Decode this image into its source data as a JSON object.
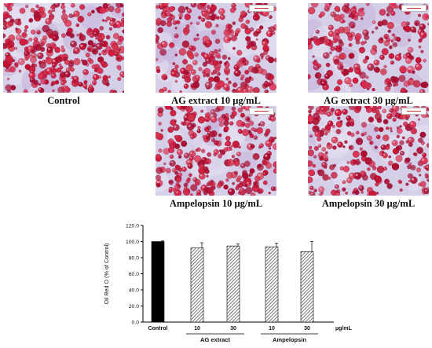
{
  "panels": [
    {
      "id": "control",
      "caption": "Control"
    },
    {
      "id": "ag10",
      "caption": "AG extract 10 µg/mL"
    },
    {
      "id": "ag30",
      "caption": "AG extract 30 µg/mL"
    },
    {
      "id": "amp10",
      "caption": "Ampelopsin 10 µg/mL"
    },
    {
      "id": "amp30",
      "caption": "Ampelopsin 30 µg/mL"
    }
  ],
  "chart_data": {
    "type": "bar",
    "ylabel": "Oil Red O (% of Control)",
    "ylim": [
      0,
      120
    ],
    "yticks": [
      "0.0",
      "20.0",
      "40.0",
      "60.0",
      "80.0",
      "100.0",
      "120.0"
    ],
    "categories": [
      "Control",
      "10",
      "30",
      "10",
      "30"
    ],
    "values": [
      100,
      92,
      94.5,
      93.5,
      87.5
    ],
    "errors": [
      0.8,
      6.5,
      2.5,
      4.5,
      12.5
    ],
    "unit": "µg/mL",
    "groups": [
      {
        "label": "AG extract",
        "members": [
          1,
          2
        ]
      },
      {
        "label": "Ampelopsin",
        "members": [
          3,
          4
        ]
      }
    ],
    "bar_styles": [
      "solid-black",
      "hatched",
      "hatched",
      "hatched",
      "hatched"
    ],
    "colors": {
      "solid": "#000000",
      "hatch": "#555555"
    },
    "grid": false,
    "legend": "none"
  }
}
